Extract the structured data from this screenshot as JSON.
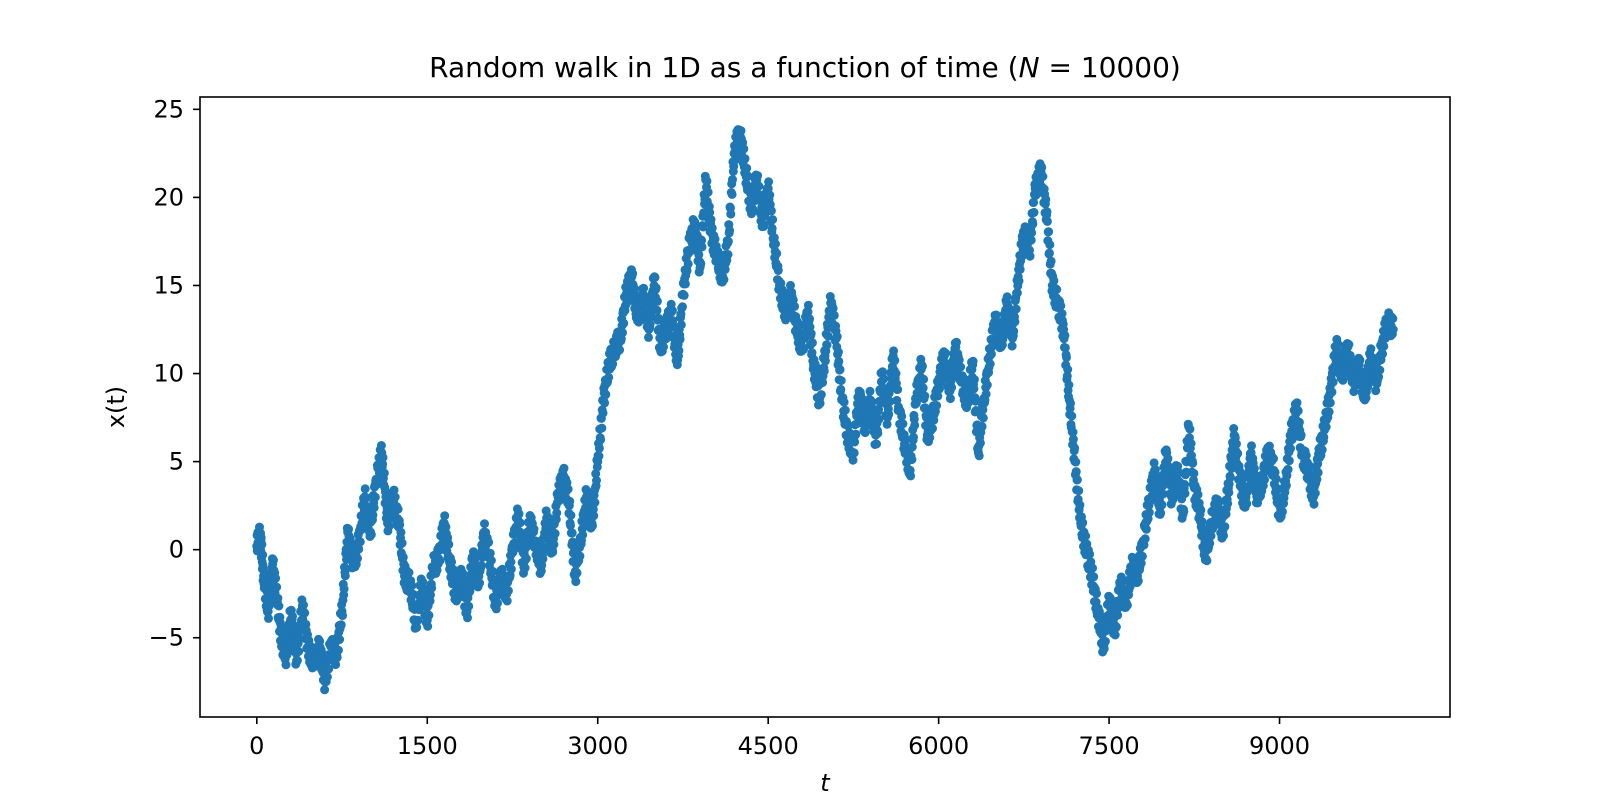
{
  "chart_data": {
    "type": "scatter",
    "title": "Random walk in 1D as a function of time (",
    "title_var": "N",
    "title_eq": " = 10000)",
    "xlabel": "t",
    "ylabel": "x(t)",
    "xlim": [
      -500,
      10500
    ],
    "ylim": [
      -9.5,
      25.7
    ],
    "xticks": [
      0,
      1500,
      3000,
      4500,
      6000,
      7500,
      9000
    ],
    "xtick_labels": [
      "0",
      "1500",
      "3000",
      "4500",
      "6000",
      "7500",
      "9000"
    ],
    "yticks": [
      -5,
      0,
      5,
      10,
      15,
      20,
      25
    ],
    "ytick_labels": [
      "−5",
      "0",
      "5",
      "10",
      "15",
      "20",
      "25"
    ],
    "grid": false,
    "marker_color": "#1f77b4",
    "series": [
      {
        "x": [
          0,
          30,
          60,
          100,
          140,
          180,
          220,
          260,
          300,
          350,
          400,
          450,
          500,
          550,
          600,
          650,
          700,
          750,
          800,
          850,
          900,
          950,
          1000,
          1050,
          1100,
          1150,
          1200,
          1250,
          1300,
          1350,
          1400,
          1450,
          1500,
          1550,
          1600,
          1650,
          1700,
          1750,
          1800,
          1850,
          1900,
          1950,
          2000,
          2050,
          2100,
          2150,
          2200,
          2250,
          2300,
          2350,
          2400,
          2450,
          2500,
          2550,
          2600,
          2650,
          2700,
          2750,
          2800,
          2850,
          2900,
          2950,
          3000,
          3050,
          3100,
          3150,
          3200,
          3250,
          3300,
          3350,
          3400,
          3450,
          3500,
          3550,
          3600,
          3650,
          3700,
          3750,
          3800,
          3850,
          3900,
          3950,
          4000,
          4050,
          4100,
          4150,
          4200,
          4250,
          4300,
          4350,
          4400,
          4450,
          4500,
          4550,
          4600,
          4650,
          4700,
          4750,
          4800,
          4850,
          4900,
          4950,
          5000,
          5050,
          5100,
          5150,
          5200,
          5250,
          5300,
          5350,
          5400,
          5450,
          5500,
          5550,
          5600,
          5650,
          5700,
          5750,
          5800,
          5850,
          5900,
          5950,
          6000,
          6050,
          6100,
          6150,
          6200,
          6250,
          6300,
          6350,
          6400,
          6450,
          6500,
          6550,
          6600,
          6650,
          6700,
          6750,
          6800,
          6850,
          6900,
          6950,
          7000,
          7050,
          7100,
          7150,
          7200,
          7250,
          7300,
          7350,
          7400,
          7450,
          7500,
          7550,
          7600,
          7650,
          7700,
          7750,
          7800,
          7850,
          7900,
          7950,
          8000,
          8050,
          8100,
          8150,
          8200,
          8250,
          8300,
          8350,
          8400,
          8450,
          8500,
          8550,
          8600,
          8650,
          8700,
          8750,
          8800,
          8850,
          8900,
          8950,
          9000,
          9050,
          9100,
          9150,
          9200,
          9250,
          9300,
          9350,
          9400,
          9450,
          9500,
          9550,
          9600,
          9650,
          9700,
          9750,
          9800,
          9850,
          9900,
          9950,
          10000
        ],
        "y": [
          0.2,
          0.9,
          -1.5,
          -3.5,
          -0.8,
          -3.0,
          -5.2,
          -6.0,
          -3.5,
          -6.3,
          -3.2,
          -5.5,
          -6.5,
          -5.5,
          -7.5,
          -5.5,
          -6.0,
          -3.5,
          1.0,
          -1.0,
          0.5,
          3.0,
          1.0,
          4.0,
          5.5,
          1.5,
          3.0,
          1.5,
          -1.5,
          -2.0,
          -4.2,
          -2.0,
          -4.0,
          -1.0,
          -0.5,
          1.5,
          -0.8,
          -2.5,
          -1.5,
          -3.5,
          -0.5,
          -2.0,
          1.0,
          -0.5,
          -3.0,
          -1.5,
          -2.5,
          0.0,
          2.0,
          -1.0,
          1.5,
          0.5,
          -1.0,
          1.8,
          0.0,
          3.0,
          4.2,
          2.5,
          -1.5,
          0.5,
          3.0,
          1.5,
          5.0,
          8.5,
          10.5,
          11.5,
          12.0,
          14.5,
          15.5,
          13.0,
          14.5,
          12.5,
          15.5,
          11.5,
          12.5,
          13.5,
          10.5,
          14.5,
          17.0,
          18.5,
          16.0,
          21.0,
          18.0,
          16.5,
          15.5,
          17.5,
          22.5,
          23.8,
          21.5,
          19.5,
          21.0,
          18.5,
          20.5,
          17.5,
          15.0,
          13.5,
          14.5,
          12.5,
          11.5,
          13.5,
          10.5,
          8.5,
          11.0,
          14.0,
          12.0,
          8.5,
          6.5,
          5.5,
          9.0,
          7.0,
          8.5,
          6.0,
          10.0,
          7.5,
          11.0,
          8.0,
          6.0,
          4.5,
          8.5,
          10.5,
          6.5,
          7.5,
          9.5,
          11.0,
          9.0,
          11.5,
          9.5,
          8.5,
          10.5,
          5.5,
          8.5,
          11.0,
          13.0,
          11.5,
          14.0,
          12.0,
          15.5,
          18.0,
          17.0,
          20.5,
          21.5,
          19.0,
          15.0,
          14.0,
          12.5,
          8.5,
          5.0,
          1.5,
          0.0,
          -1.5,
          -3.5,
          -5.5,
          -3.0,
          -4.5,
          -2.0,
          -3.0,
          -1.0,
          -1.5,
          0.5,
          2.5,
          4.5,
          2.0,
          5.5,
          3.0,
          4.5,
          2.0,
          7.0,
          3.5,
          2.0,
          -0.5,
          1.5,
          2.5,
          1.0,
          3.5,
          6.5,
          4.0,
          2.5,
          5.5,
          3.0,
          4.0,
          5.5,
          4.5,
          2.0,
          3.5,
          6.5,
          8.0,
          5.5,
          4.5,
          3.0,
          5.5,
          7.0,
          9.0,
          11.5,
          10.0,
          11.5,
          9.5,
          10.5,
          8.5,
          11.0,
          9.5,
          11.5,
          13.0,
          12.5
        ]
      }
    ]
  }
}
